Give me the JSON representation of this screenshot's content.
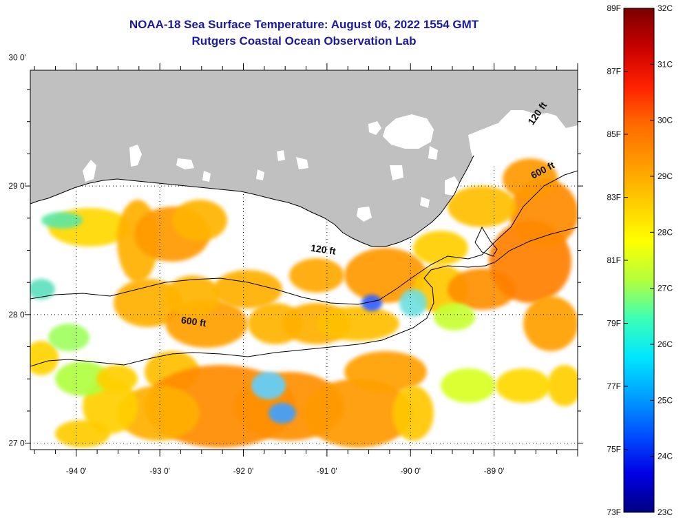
{
  "title": {
    "line1": "NOAA-18 Sea Surface Temperature:  August 06, 2022 1554 GMT",
    "line2": "Rutgers Coastal Ocean Observation Lab"
  },
  "map": {
    "lon_range": [
      -94.55,
      -88.0
    ],
    "lat_range": [
      26.95,
      29.9
    ],
    "x_ticks": [
      {
        "value": -94,
        "label": "-94 0'"
      },
      {
        "value": -93,
        "label": "-93 0'"
      },
      {
        "value": -92,
        "label": "-92 0'"
      },
      {
        "value": -91,
        "label": "-91 0'"
      },
      {
        "value": -90,
        "label": "-90 0'"
      },
      {
        "value": -89,
        "label": "-89 0'"
      }
    ],
    "y_ticks": [
      {
        "value": 30,
        "label": "30 0'"
      },
      {
        "value": 29,
        "label": "29 0'"
      },
      {
        "value": 28,
        "label": "28 0'"
      },
      {
        "value": 27,
        "label": "27 0'"
      }
    ],
    "land_color": "#c0c0c0",
    "no_data_color": "#ffffff",
    "contour_labels": [
      {
        "text": "120 ft",
        "lon": -91.05,
        "lat": 28.48
      },
      {
        "text": "600 ft",
        "lon": -92.6,
        "lat": 27.92
      },
      {
        "text": "120 ft",
        "lon": -88.45,
        "lat": 29.55
      },
      {
        "text": "600 ft",
        "lon": -88.4,
        "lat": 29.1
      }
    ]
  },
  "colorbar": {
    "f_labels": [
      "89F",
      "87F",
      "85F",
      "83F",
      "81F",
      "79F",
      "77F",
      "75F",
      "73F"
    ],
    "c_labels": [
      "32C",
      "31C",
      "30C",
      "29C",
      "28C",
      "27C",
      "26C",
      "25C",
      "24C",
      "23C"
    ],
    "stops": [
      "#7a0000",
      "#c80000",
      "#ff2000",
      "#ff6a00",
      "#ff9a00",
      "#ffcc00",
      "#ffff00",
      "#b4ff3c",
      "#3cffb4",
      "#00e6ff",
      "#00a0ff",
      "#0050ff",
      "#0000e6",
      "#000080"
    ]
  }
}
